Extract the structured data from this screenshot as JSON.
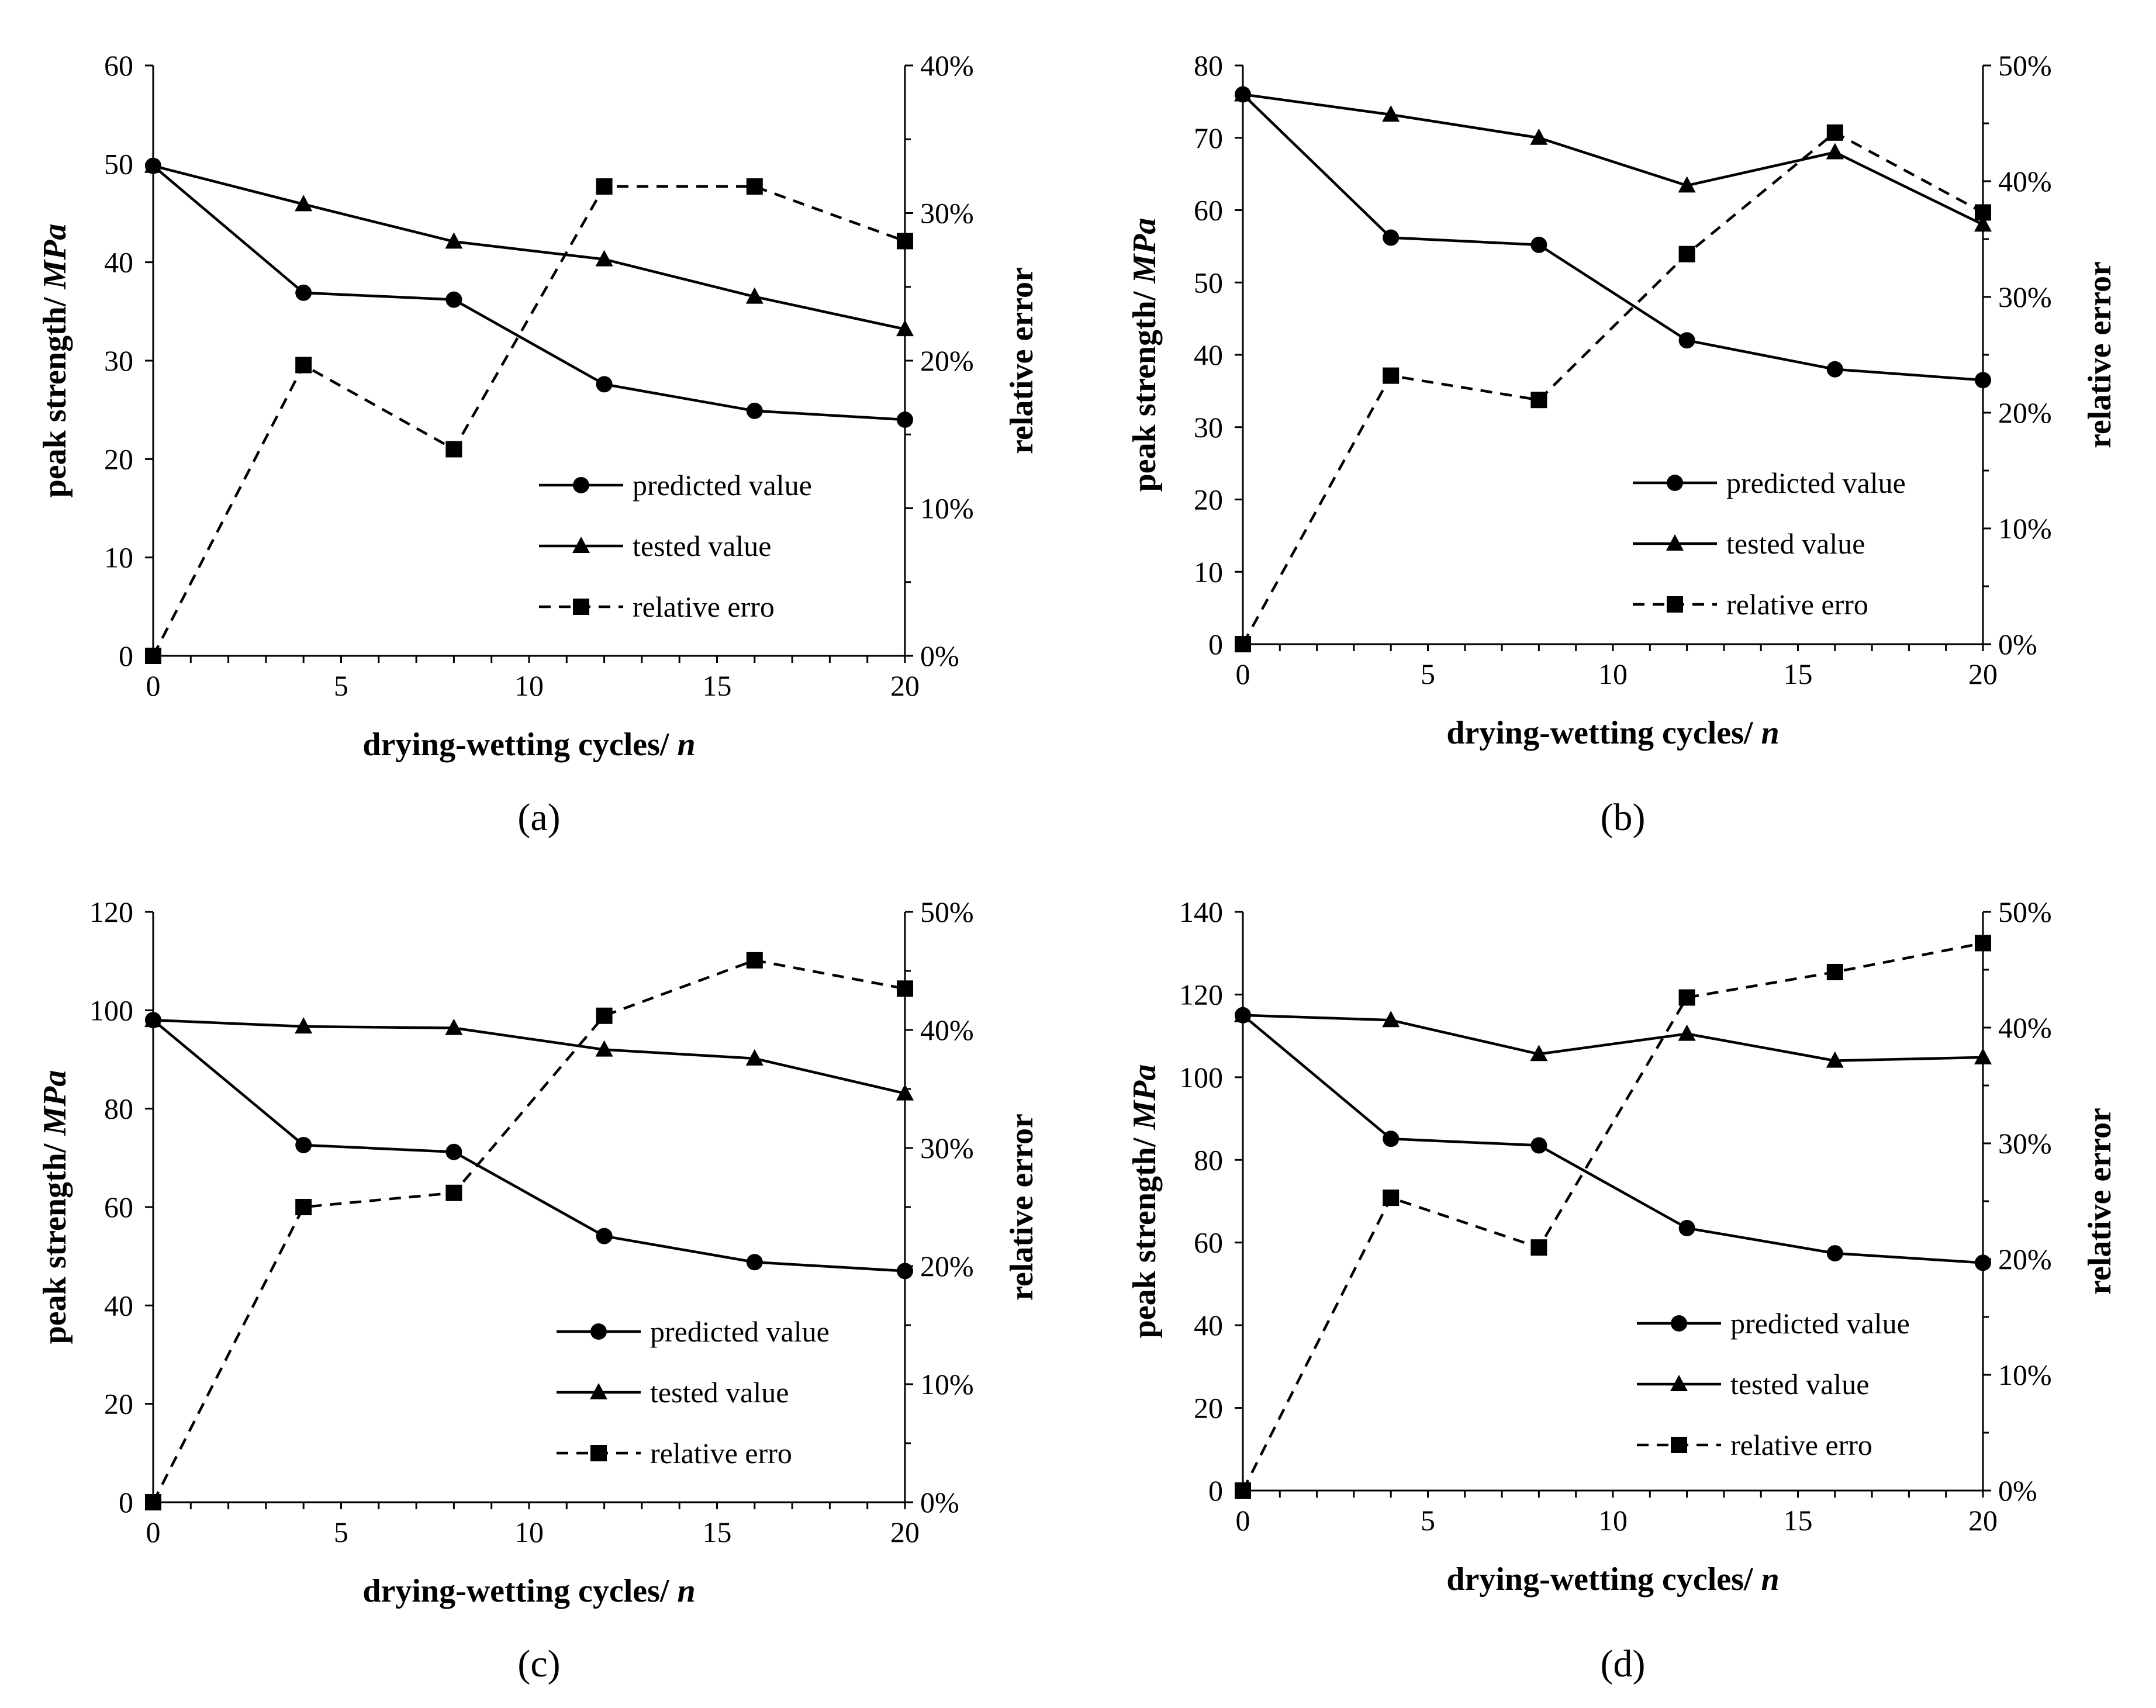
{
  "figure": {
    "captions": [
      "(a)",
      "(b)",
      "(c)",
      "(d)"
    ]
  },
  "legend_labels": [
    "predicted value",
    "tested value",
    "relative erro"
  ],
  "chart_data": [
    {
      "type": "line",
      "caption": "(a)",
      "xlabel": "drying-wetting cycles/ n",
      "ylabel": "peak strength/ MPa",
      "y2label": "relative error",
      "x": [
        0,
        4,
        8,
        12,
        16,
        20
      ],
      "xticks": [
        0,
        5,
        10,
        15,
        20
      ],
      "xlim": [
        0,
        20
      ],
      "ylim": [
        0,
        60
      ],
      "yticks": [
        0,
        10,
        20,
        30,
        40,
        50,
        60
      ],
      "y2lim": [
        0,
        40
      ],
      "y2ticks": [
        "0%",
        "10%",
        "20%",
        "30%",
        "40%"
      ],
      "legend_position": "lower-right",
      "series": [
        {
          "name": "predicted value",
          "axis": "left",
          "marker": "circle",
          "line": "solid",
          "values": [
            49.8,
            36.9,
            36.2,
            27.6,
            24.9,
            24.0
          ]
        },
        {
          "name": "tested value",
          "axis": "left",
          "marker": "triangle",
          "line": "solid",
          "values": [
            49.8,
            45.9,
            42.1,
            40.3,
            36.5,
            33.2
          ]
        },
        {
          "name": "relative erro",
          "axis": "right",
          "marker": "square",
          "line": "dashed",
          "values": [
            0,
            19.7,
            14.0,
            31.8,
            31.8,
            28.1
          ]
        }
      ]
    },
    {
      "type": "line",
      "caption": "(b)",
      "xlabel": "drying-wetting cycles/ n",
      "ylabel": "peak strength/ MPa",
      "y2label": "relative error",
      "x": [
        0,
        4,
        8,
        12,
        16,
        20
      ],
      "xticks": [
        0,
        5,
        10,
        15,
        20
      ],
      "xlim": [
        0,
        20
      ],
      "ylim": [
        0,
        80
      ],
      "yticks": [
        0,
        10,
        20,
        30,
        40,
        50,
        60,
        70,
        80
      ],
      "y2lim": [
        0,
        50
      ],
      "y2ticks": [
        "0%",
        "10%",
        "20%",
        "30%",
        "40%",
        "50%"
      ],
      "legend_position": "lower-right",
      "series": [
        {
          "name": "predicted value",
          "axis": "left",
          "marker": "circle",
          "line": "solid",
          "values": [
            76.0,
            56.2,
            55.2,
            42.0,
            38.0,
            36.5
          ]
        },
        {
          "name": "tested value",
          "axis": "left",
          "marker": "triangle",
          "line": "solid",
          "values": [
            76.0,
            73.2,
            70.0,
            63.4,
            68.0,
            58.0
          ]
        },
        {
          "name": "relative erro",
          "axis": "right",
          "marker": "square",
          "line": "dashed",
          "values": [
            0,
            23.2,
            21.1,
            33.7,
            44.2,
            37.3
          ]
        }
      ]
    },
    {
      "type": "line",
      "caption": "(c)",
      "xlabel": "drying-wetting cycles/ n",
      "ylabel": "peak strength/ MPa",
      "y2label": "relative error",
      "x": [
        0,
        4,
        8,
        12,
        16,
        20
      ],
      "xticks": [
        0,
        5,
        10,
        15,
        20
      ],
      "xlim": [
        0,
        20
      ],
      "ylim": [
        0,
        120
      ],
      "yticks": [
        0,
        20,
        40,
        60,
        80,
        100,
        120
      ],
      "y2lim": [
        0,
        50
      ],
      "y2ticks": [
        "0%",
        "10%",
        "20%",
        "30%",
        "40%",
        "50%"
      ],
      "legend_position": "lower-right",
      "series": [
        {
          "name": "predicted value",
          "axis": "left",
          "marker": "circle",
          "line": "solid",
          "values": [
            98.0,
            72.6,
            71.2,
            54.1,
            48.8,
            47.0
          ]
        },
        {
          "name": "tested value",
          "axis": "left",
          "marker": "triangle",
          "line": "solid",
          "values": [
            98.0,
            96.7,
            96.4,
            92.0,
            90.2,
            83.1
          ]
        },
        {
          "name": "relative erro",
          "axis": "right",
          "marker": "square",
          "line": "dashed",
          "values": [
            0,
            25.0,
            26.2,
            41.2,
            45.9,
            43.5
          ]
        }
      ]
    },
    {
      "type": "line",
      "caption": "(d)",
      "xlabel": "drying-wetting cycles/ n",
      "ylabel": "peak strength/ MPa",
      "y2label": "relative error",
      "x": [
        0,
        4,
        8,
        12,
        16,
        20
      ],
      "xticks": [
        0,
        5,
        10,
        15,
        20
      ],
      "xlim": [
        0,
        20
      ],
      "ylim": [
        0,
        140
      ],
      "yticks": [
        0,
        20,
        40,
        60,
        80,
        100,
        120,
        140
      ],
      "y2lim": [
        0,
        50
      ],
      "y2ticks": [
        "0%",
        "10%",
        "20%",
        "30%",
        "40%",
        "50%"
      ],
      "legend_position": "lower-right",
      "series": [
        {
          "name": "predicted value",
          "axis": "left",
          "marker": "circle",
          "line": "solid",
          "values": [
            115.0,
            85.1,
            83.5,
            63.5,
            57.4,
            55.1
          ]
        },
        {
          "name": "tested value",
          "axis": "left",
          "marker": "triangle",
          "line": "solid",
          "values": [
            115.0,
            113.8,
            105.6,
            110.5,
            104.0,
            104.8
          ]
        },
        {
          "name": "relative erro",
          "axis": "right",
          "marker": "square",
          "line": "dashed",
          "values": [
            0,
            25.3,
            21.0,
            42.6,
            44.8,
            47.3
          ]
        }
      ]
    }
  ]
}
